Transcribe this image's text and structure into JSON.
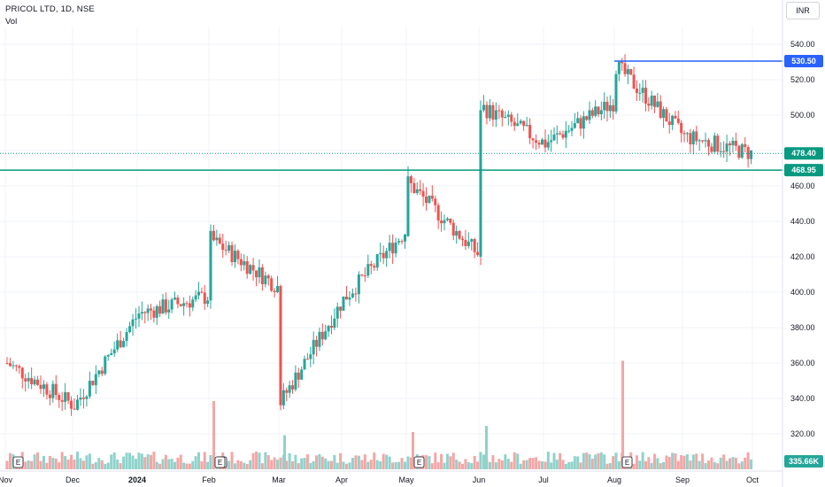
{
  "header": {
    "title": "PRICOL LTD, 1D, NSE",
    "vol_label": "Vol",
    "currency": "INR"
  },
  "colors": {
    "up": "#26a69a",
    "down": "#ef5350",
    "up_vol": "#8fd3cb",
    "down_vol": "#f4a6a6",
    "resistance": "#2962ff",
    "support": "#089981",
    "last_price_dotted": "#089981",
    "grid": "#f0f3fa"
  },
  "chart_data": {
    "type": "candlestick",
    "title": "PRICOL LTD, 1D, NSE",
    "y_range": [
      300,
      550
    ],
    "y_ticks": [
      "540.00",
      "520.00",
      "500.00",
      "480.00",
      "460.00",
      "440.00",
      "420.00",
      "400.00",
      "380.00",
      "360.00",
      "340.00",
      "320.00"
    ],
    "x_ticks": [
      "Nov",
      "Dec",
      "2024",
      "Feb",
      "Mar",
      "Apr",
      "May",
      "Jun",
      "Jul",
      "Aug",
      "Sep",
      "Oct"
    ],
    "horizontal_lines": [
      {
        "label": "530.50",
        "value": 530.5,
        "color": "#2962ff",
        "style": "solid",
        "from": "Aug"
      },
      {
        "label": "468.95",
        "value": 468.95,
        "color": "#089981",
        "style": "solid",
        "from": "start"
      }
    ],
    "last_price": {
      "label": "478.40",
      "value": 478.4
    },
    "volume_readout": "335.66K",
    "earnings_markers": [
      "E",
      "E",
      "E",
      "E",
      "E"
    ],
    "earnings_months": [
      "Nov",
      "Feb",
      "Feb",
      "May",
      "Aug"
    ],
    "segments": [
      {
        "from_month": "Nov",
        "to_month": "Dec",
        "start": 360,
        "end": 336
      },
      {
        "from_month": "Dec",
        "to_month": "2024",
        "start": 336,
        "end": 388
      },
      {
        "from_month": "2024",
        "to_month": "Feb",
        "start": 388,
        "end": 398
      },
      {
        "from_month": "Feb",
        "to_month": "Feb",
        "start": 398,
        "end": 430
      },
      {
        "from_month": "Feb",
        "to_month": "Mar",
        "start": 430,
        "end": 402
      },
      {
        "from_month": "Mar",
        "to_month": "Mar",
        "start": 402,
        "end": 338
      },
      {
        "from_month": "Mar",
        "to_month": "Apr",
        "start": 338,
        "end": 396
      },
      {
        "from_month": "Apr",
        "to_month": "May",
        "start": 396,
        "end": 436
      },
      {
        "from_month": "May",
        "to_month": "May",
        "start": 436,
        "end": 462
      },
      {
        "from_month": "May",
        "to_month": "Jun",
        "start": 462,
        "end": 420
      },
      {
        "from_month": "Jun",
        "to_month": "Jun",
        "start": 420,
        "end": 505
      },
      {
        "from_month": "Jun",
        "to_month": "Jul",
        "start": 505,
        "end": 484
      },
      {
        "from_month": "Jul",
        "to_month": "Aug",
        "start": 484,
        "end": 508
      },
      {
        "from_month": "Aug",
        "to_month": "Aug",
        "start": 508,
        "end": 528
      },
      {
        "from_month": "Aug",
        "to_month": "Sep",
        "start": 528,
        "end": 488
      },
      {
        "from_month": "Sep",
        "to_month": "Oct",
        "start": 488,
        "end": 478
      }
    ],
    "volumes": [
      {
        "month": "Feb",
        "value": 2.2
      },
      {
        "month": "Mar",
        "value": 1.1
      },
      {
        "month": "May",
        "value": 1.2
      },
      {
        "month": "Jun",
        "value": 1.4
      },
      {
        "month": "Aug",
        "value": 3.5
      }
    ]
  }
}
